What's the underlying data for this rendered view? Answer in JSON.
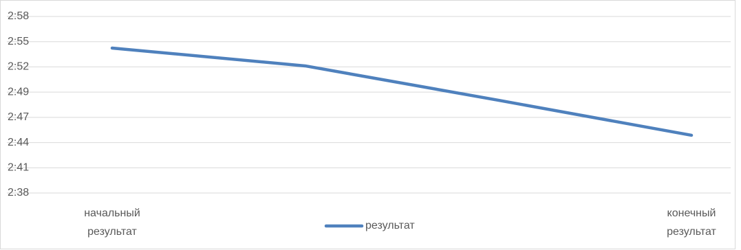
{
  "chart_data": {
    "type": "line",
    "categories": [
      "начальный результат",
      null,
      null,
      "конечный результат"
    ],
    "series": [
      {
        "name": "результат",
        "color": "#4f81bd",
        "values": [
          174.42,
          172.4,
          168.51,
          164.54
        ]
      }
    ],
    "ylim": [
      158,
      178
    ],
    "yticks": [
      {
        "value": 158,
        "label": "2:38"
      },
      {
        "value": 160.86,
        "label": "2:41"
      },
      {
        "value": 163.71,
        "label": "2:44"
      },
      {
        "value": 166.57,
        "label": "2:47"
      },
      {
        "value": 169.43,
        "label": "2:49"
      },
      {
        "value": 172.29,
        "label": "2:52"
      },
      {
        "value": 175.14,
        "label": "2:55"
      },
      {
        "value": 178,
        "label": "2:58"
      }
    ],
    "grid": true,
    "legend": "bottom"
  }
}
